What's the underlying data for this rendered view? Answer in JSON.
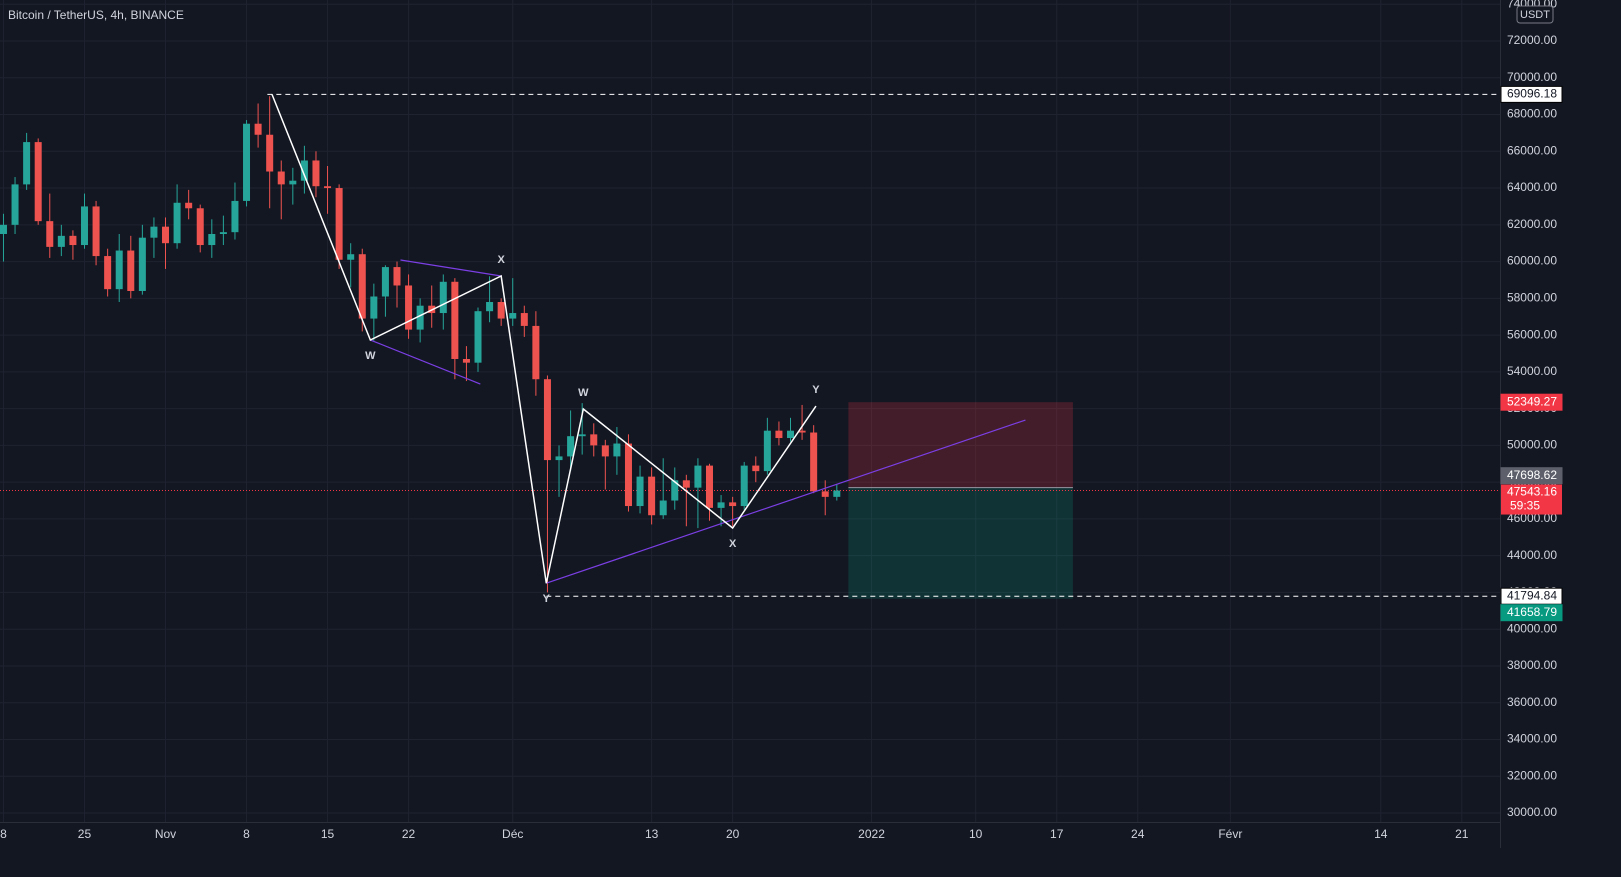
{
  "chart_data": {
    "type": "candlestick",
    "title": "Bitcoin / TetherUS, 4h, BINANCE",
    "currency": "USDT",
    "up_color": "#26a69a",
    "down_color": "#ef5350",
    "x": [
      0,
      1,
      2,
      3,
      4,
      5,
      6,
      7,
      8,
      9,
      10,
      11,
      12,
      13,
      14,
      15,
      16,
      17,
      18,
      19,
      20,
      21,
      22,
      23,
      24,
      25,
      26,
      27,
      28,
      29,
      30,
      31,
      32,
      33,
      34,
      35,
      36,
      37,
      38,
      39,
      40,
      41,
      42,
      43,
      44,
      45,
      46,
      47,
      48,
      49,
      50,
      51,
      52,
      53,
      54,
      55,
      56,
      57,
      58,
      59,
      60,
      61,
      62,
      63,
      64,
      65,
      66,
      67,
      68,
      69,
      70,
      71,
      72
    ],
    "open": [
      61500,
      62000,
      64200,
      66500,
      62200,
      60800,
      61400,
      60900,
      63000,
      60300,
      58500,
      60600,
      58400,
      61300,
      61900,
      61000,
      63200,
      62900,
      60900,
      61500,
      61600,
      63300,
      67500,
      66900,
      64900,
      64200,
      64400,
      65500,
      64100,
      64000,
      60100,
      60400,
      56900,
      58100,
      59700,
      58700,
      56300,
      57600,
      57200,
      58900,
      54700,
      54500,
      57300,
      57800,
      56900,
      57200,
      56500,
      53600,
      49200,
      49400,
      50500,
      50600,
      50000,
      49400,
      50100,
      46700,
      48300,
      46200,
      47000,
      48100,
      47700,
      48900,
      46600,
      46900,
      46700,
      48900,
      48600,
      50800,
      50400,
      50800,
      50700,
      47500,
      47200
    ],
    "high": [
      62600,
      64600,
      67000,
      66700,
      63700,
      62000,
      61700,
      63700,
      63300,
      60700,
      61500,
      61400,
      62000,
      62400,
      62400,
      64200,
      63900,
      63100,
      62300,
      62500,
      64300,
      67700,
      68600,
      69000,
      65500,
      65100,
      66300,
      66000,
      65200,
      64200,
      61000,
      60700,
      58800,
      59800,
      60000,
      59300,
      58000,
      58700,
      59300,
      59100,
      55400,
      57500,
      59200,
      58000,
      59100,
      57600,
      57300,
      53800,
      50000,
      51900,
      52300,
      51200,
      50300,
      51000,
      50600,
      48900,
      48800,
      49300,
      48800,
      48400,
      49300,
      49000,
      47300,
      47200,
      49100,
      49400,
      51500,
      51300,
      51500,
      52200,
      51100,
      48100,
      47900
    ],
    "low": [
      60000,
      61500,
      63900,
      62000,
      60200,
      60300,
      60100,
      60700,
      59800,
      58100,
      57800,
      58000,
      58200,
      60200,
      59600,
      60700,
      62300,
      60500,
      60200,
      60900,
      61200,
      63000,
      66200,
      62900,
      62300,
      63100,
      63700,
      63500,
      62600,
      59600,
      58600,
      56200,
      55700,
      57000,
      57500,
      55800,
      55600,
      56400,
      56300,
      53600,
      53500,
      54000,
      56700,
      56500,
      56500,
      55900,
      52700,
      42000,
      47200,
      48600,
      49500,
      49400,
      47600,
      48400,
      46400,
      46300,
      45700,
      46000,
      46500,
      45600,
      45500,
      45900,
      45600,
      45600,
      46500,
      48000,
      48400,
      50000,
      50200,
      50300,
      47400,
      46200,
      47000
    ],
    "close": [
      62000,
      64200,
      66500,
      62200,
      60800,
      61400,
      60900,
      63000,
      60300,
      58500,
      60600,
      58400,
      61300,
      61900,
      61000,
      63200,
      62900,
      60900,
      61500,
      61600,
      63300,
      67500,
      66900,
      64900,
      64200,
      64400,
      65500,
      64100,
      64000,
      60100,
      60400,
      56900,
      58100,
      59700,
      58700,
      56300,
      57600,
      57200,
      58900,
      54700,
      54500,
      57300,
      57800,
      56900,
      57200,
      56500,
      53600,
      49200,
      49400,
      50500,
      50600,
      50000,
      49400,
      50100,
      46700,
      48300,
      46200,
      47000,
      48100,
      47700,
      48900,
      46600,
      46900,
      46700,
      48900,
      48600,
      50800,
      50400,
      50800,
      50700,
      47500,
      47200,
      47543.16
    ],
    "xlim": [
      -0.3,
      129.3
    ],
    "xticks": [
      {
        "value": 0,
        "label": "8"
      },
      {
        "value": 7,
        "label": "25"
      },
      {
        "value": 14,
        "label": "Nov"
      },
      {
        "value": 21,
        "label": "8"
      },
      {
        "value": 28,
        "label": "15"
      },
      {
        "value": 35,
        "label": "22"
      },
      {
        "value": 44,
        "label": "Déc"
      },
      {
        "value": 56,
        "label": "13"
      },
      {
        "value": 63,
        "label": "20"
      },
      {
        "value": 75,
        "label": "2022"
      },
      {
        "value": 84,
        "label": "10"
      },
      {
        "value": 91,
        "label": "17"
      },
      {
        "value": 98,
        "label": "24"
      },
      {
        "value": 106,
        "label": "Févr"
      },
      {
        "value": 119,
        "label": "14"
      },
      {
        "value": 126,
        "label": "21"
      }
    ],
    "ylim": [
      28096,
      74231
    ],
    "yticks": [
      {
        "value": 30000,
        "label": "30000.00"
      },
      {
        "value": 32000,
        "label": "32000.00"
      },
      {
        "value": 34000,
        "label": "34000.00"
      },
      {
        "value": 36000,
        "label": "36000.00"
      },
      {
        "value": 38000,
        "label": "38000.00"
      },
      {
        "value": 40000,
        "label": "40000.00"
      },
      {
        "value": 42000,
        "label": "42000.00"
      },
      {
        "value": 44000,
        "label": "44000.00"
      },
      {
        "value": 46000,
        "label": "46000.00"
      },
      {
        "value": 48000,
        "label": "48000.00"
      },
      {
        "value": 50000,
        "label": "50000.00"
      },
      {
        "value": 52000,
        "label": "52000.00"
      },
      {
        "value": 54000,
        "label": "54000.00"
      },
      {
        "value": 56000,
        "label": "56000.00"
      },
      {
        "value": 58000,
        "label": "58000.00"
      },
      {
        "value": 60000,
        "label": "60000.00"
      },
      {
        "value": 62000,
        "label": "62000.00"
      },
      {
        "value": 64000,
        "label": "64000.00"
      },
      {
        "value": 66000,
        "label": "66000.00"
      },
      {
        "value": 68000,
        "label": "68000.00"
      },
      {
        "value": 70000,
        "label": "70000.00"
      },
      {
        "value": 72000,
        "label": "72000.00"
      },
      {
        "value": 74000,
        "label": "74000.00"
      }
    ],
    "grid": true,
    "waves": {
      "x": [
        23.2,
        31.7,
        43,
        46.9,
        50.1,
        63,
        70.2
      ],
      "y": [
        69096.18,
        55733,
        59215,
        42500,
        51980,
        45506,
        52140
      ],
      "labels": [
        null,
        "W",
        "X",
        "Y",
        "W",
        "X",
        "Y"
      ],
      "color": "#ffffff"
    },
    "trendlines": [
      {
        "x": [
          46.9,
          88.3
        ],
        "y": [
          42500,
          51380
        ]
      },
      {
        "x": [
          34.3,
          43
        ],
        "y": [
          60085,
          59215
        ]
      },
      {
        "x": [
          31.7,
          41.2
        ],
        "y": [
          55733,
          53339
        ]
      }
    ],
    "trendline_color": "#7b3fe4",
    "levels": [
      {
        "value": 69096.18,
        "from": 22.8
      },
      {
        "value": 41794.84,
        "from": 46.9
      }
    ],
    "position": {
      "x": [
        73,
        92.4
      ],
      "stop": 52349.27,
      "entry": 47698.62,
      "target": 41658.79,
      "stop_color": "#f23645",
      "target_color": "#089981",
      "entry_color": "#5d606b"
    },
    "last": {
      "value": 47543.16,
      "countdown": "59:35",
      "color": "#f23645"
    }
  }
}
